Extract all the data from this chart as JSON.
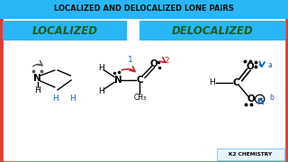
{
  "title": "LOCALIZED AND DELOCALIZED LONE PAIRS",
  "title_color": "#111111",
  "title_bg": "#29b6f6",
  "localized_label": "LOCALIZED",
  "delocalized_label": "DELOCALIZED",
  "label_color": "#1b5e20",
  "label_bg": "#29b6f6",
  "bg_color": "#ffffff",
  "outer_bg": "#e53935",
  "k2_text": "K2 CHEMISTRY",
  "k2_bg": "#e8f4fd",
  "blue": "#1565c0",
  "red": "#c62828",
  "gray": "#555555",
  "black": "#000000"
}
